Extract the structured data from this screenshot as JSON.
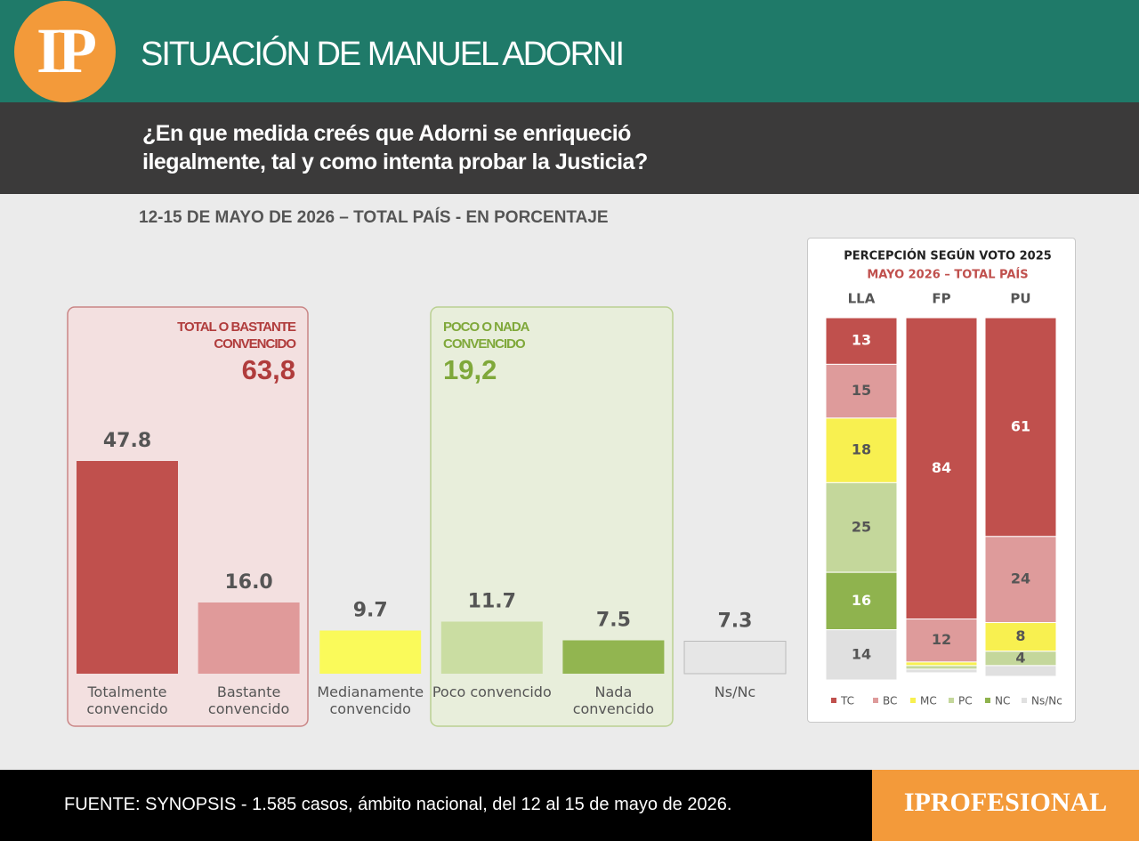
{
  "header": {
    "logo": "IP",
    "title": "SITUACIÓN DE MANUEL ADORNI",
    "question": "¿En que medida creés que Adorni se enriqueció ilegalmente, tal y como intenta probar la Justicia?"
  },
  "chart_data": [
    {
      "type": "bar",
      "subtitle": "12-15 DE MAYO DE 2026 – TOTAL PAÍS - EN PORCENTAJE",
      "categories": [
        "Totalmente convencido",
        "Bastante convencido",
        "Medianamente convencido",
        "Poco convencido",
        "Nada convencido",
        "Ns/Nc"
      ],
      "values": [
        47.8,
        16.0,
        9.7,
        11.7,
        7.5,
        7.3
      ],
      "value_labels": [
        "47.8",
        "16.0",
        "9.7",
        "11.7",
        "7.5",
        "7.3"
      ],
      "colors": [
        "#c0504d",
        "#e09a9a",
        "#fafa5a",
        "#cadda2",
        "#92b550",
        "#e6e6e6"
      ],
      "groups": [
        {
          "label": "TOTAL O BASTANTE CONVENCIDO",
          "total": {
            "value": 63.8,
            "label": "63,8"
          },
          "color": "#b03c3c"
        },
        {
          "label": "POCO O NADA CONVENCIDO",
          "total": {
            "value": 19.2,
            "label": "19,2"
          },
          "color": "#7fa83a"
        }
      ]
    },
    {
      "type": "stacked_bar",
      "title": "PERCEPCIÓN SEGÚN VOTO 2025",
      "subtitle": "MAYO 2026 – TOTAL PAÍS",
      "categories": [
        "LLA",
        "FP",
        "PU"
      ],
      "series": [
        {
          "name": "TC",
          "color": "#c0504d",
          "values": [
            13,
            84,
            61
          ]
        },
        {
          "name": "BC",
          "color": "#de9b9b",
          "values": [
            15,
            12,
            24
          ]
        },
        {
          "name": "MC",
          "color": "#f8f050",
          "values": [
            18,
            1,
            8
          ]
        },
        {
          "name": "PC",
          "color": "#c4d79b",
          "values": [
            25,
            1,
            4
          ]
        },
        {
          "name": "NC",
          "color": "#8fb34e",
          "values": [
            16,
            0,
            0
          ]
        },
        {
          "name": "Ns/Nc",
          "color": "#e0e0e0",
          "values": [
            14,
            1,
            3
          ]
        }
      ]
    }
  ],
  "footer": {
    "source": "FUENTE: SYNOPSIS - 1.585 casos, ámbito nacional, del 12 al 15 de mayo de 2026.",
    "brand": "IPROFESIONAL"
  }
}
